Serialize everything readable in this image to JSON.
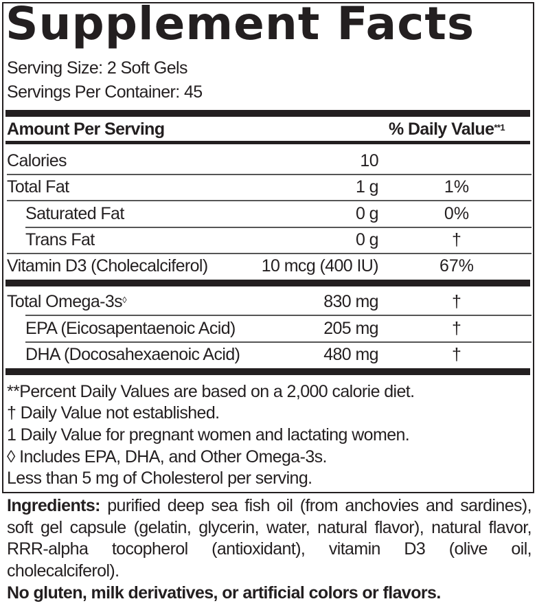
{
  "title": "Supplement Facts",
  "serving_size": "Serving Size: 2 Soft Gels",
  "servings_per_container": "Servings Per Container: 45",
  "header": {
    "amount": "Amount Per Serving",
    "dv": "% Daily Value",
    "dv_mark": "**1"
  },
  "rows_group1": [
    {
      "name": "Calories",
      "amount": "10",
      "dv": ""
    },
    {
      "name": "Total Fat",
      "amount": "1 g",
      "dv": "1%"
    },
    {
      "name": "Saturated Fat",
      "amount": "0 g",
      "dv": "0%"
    },
    {
      "name": "Trans Fat",
      "amount": "0 g",
      "dv": "†"
    },
    {
      "name": "Vitamin D3 (Cholecalciferol)",
      "amount": "10 mcg (400 IU)",
      "dv": "67%"
    }
  ],
  "rows_group2": [
    {
      "name": "Total Omega-3s",
      "mark": "◊",
      "amount": "830 mg",
      "dv": "†"
    },
    {
      "name": "EPA (Eicosapentaenoic Acid)",
      "amount": "205 mg",
      "dv": "†"
    },
    {
      "name": "DHA (Docosahexaenoic Acid)",
      "amount": "480 mg",
      "dv": "†"
    }
  ],
  "footnotes": [
    "**Percent Daily Values are based on a 2,000 calorie diet.",
    "† Daily Value not established.",
    "1 Daily Value for pregnant women and lactating women.",
    "◊ Includes EPA, DHA, and Other Omega-3s.",
    "Less than 5 mg of Cholesterol per serving."
  ],
  "ingredients": {
    "label": "Ingredients:",
    "text": " purified deep sea fish oil (from anchovies and sardines), soft gel capsule (gelatin, glycerin, water, natural flavor), natural flavor, RRR-alpha tocopherol (antioxidant), vitamin D3 (olive oil, cholecalciferol)."
  },
  "allergen_statement": "No gluten, milk derivatives, or artificial colors or flavors."
}
